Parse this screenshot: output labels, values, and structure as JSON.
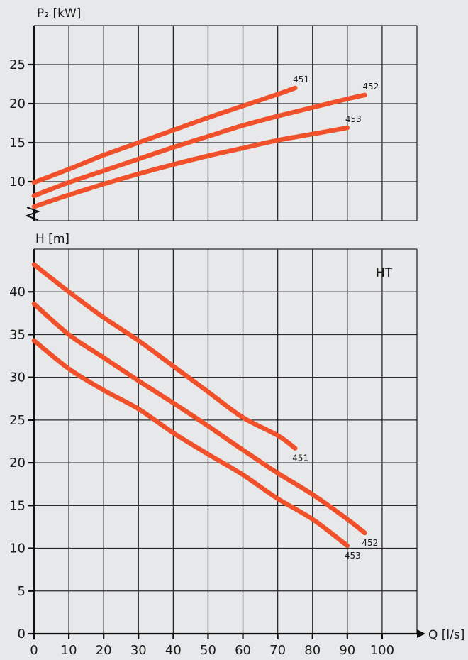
{
  "colors": {
    "curve": "#f0512b",
    "grid": "#2a2a2a",
    "axis": "#111111",
    "background": "#e6e8ea"
  },
  "chart_data": [
    {
      "type": "line",
      "title": "",
      "xlabel": "",
      "ylabel": "P₂ [kW]",
      "xlim": [
        0,
        110
      ],
      "ylim": [
        5,
        30
      ],
      "yticks": [
        10,
        15,
        20,
        25
      ],
      "axis_break": true,
      "grid": true,
      "series": [
        {
          "name": "451",
          "x": [
            0,
            10,
            20,
            30,
            40,
            50,
            60,
            70,
            75
          ],
          "y": [
            9.9,
            11.6,
            13.4,
            15.0,
            16.6,
            18.2,
            19.7,
            21.2,
            22.0
          ]
        },
        {
          "name": "452",
          "x": [
            0,
            10,
            20,
            30,
            40,
            50,
            60,
            70,
            80,
            90,
            95
          ],
          "y": [
            8.2,
            9.9,
            11.4,
            12.9,
            14.4,
            15.8,
            17.2,
            18.4,
            19.5,
            20.6,
            21.1
          ]
        },
        {
          "name": "453",
          "x": [
            0,
            10,
            20,
            30,
            40,
            50,
            60,
            70,
            80,
            90
          ],
          "y": [
            6.8,
            8.3,
            9.7,
            11.0,
            12.2,
            13.3,
            14.3,
            15.3,
            16.1,
            16.9
          ]
        }
      ]
    },
    {
      "type": "line",
      "title": "",
      "tag": "HT",
      "xlabel": "Q [l/s]",
      "ylabel": "H [m]",
      "xlim": [
        0,
        110
      ],
      "ylim": [
        0,
        45
      ],
      "xticks": [
        0,
        10,
        20,
        30,
        40,
        50,
        60,
        70,
        80,
        90,
        100
      ],
      "yticks": [
        0,
        5,
        10,
        15,
        20,
        25,
        30,
        35,
        40
      ],
      "grid": true,
      "series": [
        {
          "name": "451",
          "x": [
            0,
            10,
            20,
            30,
            40,
            50,
            60,
            70,
            75
          ],
          "y": [
            43.2,
            40.0,
            37.0,
            34.3,
            31.3,
            28.3,
            25.3,
            23.2,
            21.7
          ]
        },
        {
          "name": "452",
          "x": [
            0,
            10,
            20,
            30,
            40,
            50,
            60,
            70,
            80,
            90,
            95
          ],
          "y": [
            38.6,
            35.0,
            32.3,
            29.6,
            27.0,
            24.3,
            21.5,
            18.8,
            16.3,
            13.4,
            11.8
          ]
        },
        {
          "name": "453",
          "x": [
            0,
            10,
            20,
            30,
            40,
            50,
            60,
            70,
            80,
            90
          ],
          "y": [
            34.3,
            31.0,
            28.5,
            26.3,
            23.5,
            21.0,
            18.6,
            15.8,
            13.4,
            10.3
          ]
        }
      ]
    }
  ]
}
